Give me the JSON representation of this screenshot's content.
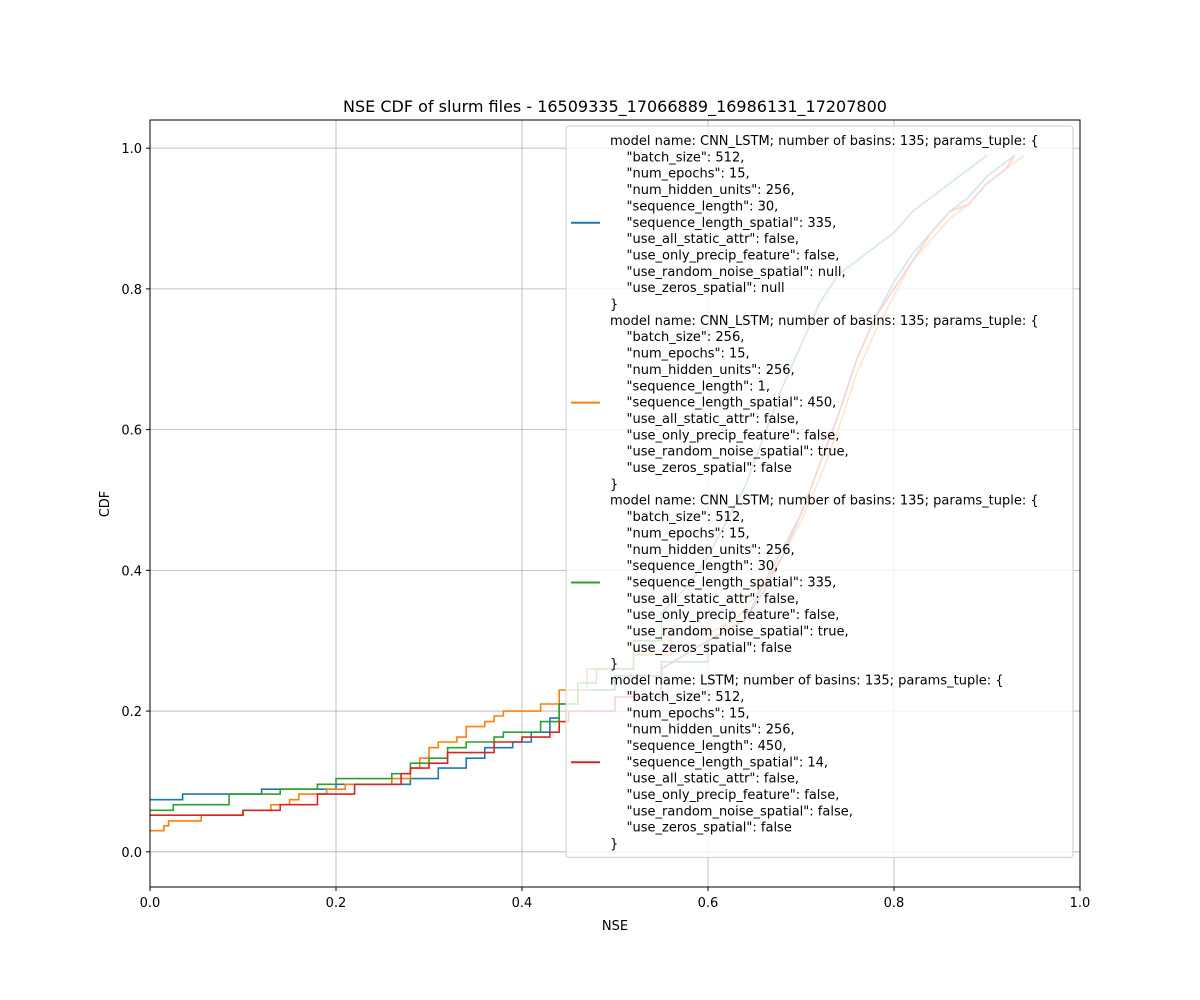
{
  "chart_data": {
    "type": "line",
    "title": "NSE CDF of slurm files - 16509335_17066889_16986131_17207800",
    "xlabel": "NSE",
    "ylabel": "CDF",
    "xlim": [
      0.0,
      1.0
    ],
    "ylim": [
      -0.05,
      1.04
    ],
    "xticks": [
      "0.0",
      "0.2",
      "0.4",
      "0.6",
      "0.8",
      "1.0"
    ],
    "yticks": [
      "0.0",
      "0.2",
      "0.4",
      "0.6",
      "0.8",
      "1.0"
    ],
    "grid": true,
    "legend_position": "top-right",
    "series": [
      {
        "color": "#1f77b4",
        "legend_lines": [
          "model name: CNN_LSTM; number of basins: 135; params_tuple: {",
          "    \"batch_size\": 512,",
          "    \"num_epochs\": 15,",
          "    \"num_hidden_units\": 256,",
          "    \"sequence_length\": 30,",
          "    \"sequence_length_spatial\": 335,",
          "    \"use_all_static_attr\": false,",
          "    \"use_only_precip_feature\": false,",
          "    \"use_random_noise_spatial\": null,",
          "    \"use_zeros_spatial\": null",
          "}"
        ],
        "points": [
          [
            0.0,
            0.074
          ],
          [
            0.035,
            0.074
          ],
          [
            0.035,
            0.082
          ],
          [
            0.12,
            0.082
          ],
          [
            0.12,
            0.089
          ],
          [
            0.2,
            0.089
          ],
          [
            0.2,
            0.096
          ],
          [
            0.28,
            0.096
          ],
          [
            0.28,
            0.104
          ],
          [
            0.31,
            0.104
          ],
          [
            0.31,
            0.119
          ],
          [
            0.34,
            0.119
          ],
          [
            0.34,
            0.133
          ],
          [
            0.36,
            0.133
          ],
          [
            0.36,
            0.148
          ],
          [
            0.39,
            0.148
          ],
          [
            0.39,
            0.156
          ],
          [
            0.41,
            0.156
          ],
          [
            0.41,
            0.17
          ],
          [
            0.43,
            0.17
          ],
          [
            0.43,
            0.19
          ],
          [
            0.44,
            0.19
          ],
          [
            0.44,
            0.21
          ],
          [
            0.46,
            0.21
          ],
          [
            0.46,
            0.23
          ],
          [
            0.5,
            0.23
          ],
          [
            0.5,
            0.25
          ],
          [
            0.55,
            0.25
          ],
          [
            0.55,
            0.27
          ],
          [
            0.6,
            0.27
          ],
          [
            0.6,
            0.3
          ],
          [
            0.64,
            0.33
          ],
          [
            0.66,
            0.38
          ],
          [
            0.68,
            0.43
          ],
          [
            0.7,
            0.48
          ],
          [
            0.72,
            0.55
          ],
          [
            0.74,
            0.62
          ],
          [
            0.76,
            0.7
          ],
          [
            0.78,
            0.76
          ],
          [
            0.8,
            0.81
          ],
          [
            0.82,
            0.85
          ],
          [
            0.84,
            0.88
          ],
          [
            0.86,
            0.91
          ],
          [
            0.88,
            0.93
          ],
          [
            0.9,
            0.96
          ],
          [
            0.92,
            0.98
          ],
          [
            0.93,
            0.99
          ]
        ]
      },
      {
        "color": "#ff7f0e",
        "legend_lines": [
          "model name: CNN_LSTM; number of basins: 135; params_tuple: {",
          "    \"batch_size\": 256,",
          "    \"num_epochs\": 15,",
          "    \"num_hidden_units\": 256,",
          "    \"sequence_length\": 1,",
          "    \"sequence_length_spatial\": 450,",
          "    \"use_all_static_attr\": false,",
          "    \"use_only_precip_feature\": false,",
          "    \"use_random_noise_spatial\": true,",
          "    \"use_zeros_spatial\": false",
          "}"
        ],
        "points": [
          [
            0.0,
            0.03
          ],
          [
            0.015,
            0.03
          ],
          [
            0.015,
            0.037
          ],
          [
            0.02,
            0.037
          ],
          [
            0.02,
            0.044
          ],
          [
            0.055,
            0.044
          ],
          [
            0.055,
            0.052
          ],
          [
            0.1,
            0.052
          ],
          [
            0.1,
            0.059
          ],
          [
            0.13,
            0.059
          ],
          [
            0.13,
            0.067
          ],
          [
            0.15,
            0.067
          ],
          [
            0.15,
            0.074
          ],
          [
            0.16,
            0.074
          ],
          [
            0.16,
            0.082
          ],
          [
            0.19,
            0.082
          ],
          [
            0.19,
            0.089
          ],
          [
            0.21,
            0.089
          ],
          [
            0.21,
            0.096
          ],
          [
            0.26,
            0.096
          ],
          [
            0.26,
            0.104
          ],
          [
            0.28,
            0.104
          ],
          [
            0.28,
            0.119
          ],
          [
            0.29,
            0.119
          ],
          [
            0.29,
            0.133
          ],
          [
            0.3,
            0.133
          ],
          [
            0.3,
            0.148
          ],
          [
            0.31,
            0.148
          ],
          [
            0.31,
            0.156
          ],
          [
            0.33,
            0.156
          ],
          [
            0.33,
            0.163
          ],
          [
            0.34,
            0.163
          ],
          [
            0.34,
            0.178
          ],
          [
            0.36,
            0.178
          ],
          [
            0.36,
            0.185
          ],
          [
            0.37,
            0.185
          ],
          [
            0.37,
            0.193
          ],
          [
            0.38,
            0.193
          ],
          [
            0.38,
            0.2
          ],
          [
            0.42,
            0.2
          ],
          [
            0.42,
            0.21
          ],
          [
            0.44,
            0.21
          ],
          [
            0.44,
            0.23
          ],
          [
            0.47,
            0.23
          ],
          [
            0.47,
            0.26
          ],
          [
            0.52,
            0.26
          ],
          [
            0.52,
            0.28
          ],
          [
            0.56,
            0.28
          ],
          [
            0.56,
            0.31
          ],
          [
            0.6,
            0.31
          ],
          [
            0.63,
            0.33
          ],
          [
            0.66,
            0.38
          ],
          [
            0.68,
            0.42
          ],
          [
            0.7,
            0.47
          ],
          [
            0.72,
            0.53
          ],
          [
            0.74,
            0.6
          ],
          [
            0.76,
            0.68
          ],
          [
            0.78,
            0.74
          ],
          [
            0.8,
            0.79
          ],
          [
            0.82,
            0.84
          ],
          [
            0.84,
            0.87
          ],
          [
            0.86,
            0.9
          ],
          [
            0.88,
            0.92
          ],
          [
            0.9,
            0.95
          ],
          [
            0.92,
            0.97
          ],
          [
            0.94,
            0.99
          ]
        ]
      },
      {
        "color": "#2ca02c",
        "legend_lines": [
          "model name: CNN_LSTM; number of basins: 135; params_tuple: {",
          "    \"batch_size\": 512,",
          "    \"num_epochs\": 15,",
          "    \"num_hidden_units\": 256,",
          "    \"sequence_length\": 30,",
          "    \"sequence_length_spatial\": 335,",
          "    \"use_all_static_attr\": false,",
          "    \"use_only_precip_feature\": false,",
          "    \"use_random_noise_spatial\": true,",
          "    \"use_zeros_spatial\": false",
          "}"
        ],
        "points": [
          [
            0.0,
            0.059
          ],
          [
            0.025,
            0.059
          ],
          [
            0.025,
            0.067
          ],
          [
            0.085,
            0.067
          ],
          [
            0.085,
            0.082
          ],
          [
            0.14,
            0.082
          ],
          [
            0.14,
            0.089
          ],
          [
            0.18,
            0.089
          ],
          [
            0.18,
            0.096
          ],
          [
            0.2,
            0.096
          ],
          [
            0.2,
            0.104
          ],
          [
            0.26,
            0.104
          ],
          [
            0.26,
            0.111
          ],
          [
            0.28,
            0.111
          ],
          [
            0.28,
            0.126
          ],
          [
            0.3,
            0.126
          ],
          [
            0.3,
            0.133
          ],
          [
            0.32,
            0.133
          ],
          [
            0.32,
            0.148
          ],
          [
            0.34,
            0.148
          ],
          [
            0.34,
            0.156
          ],
          [
            0.37,
            0.156
          ],
          [
            0.37,
            0.163
          ],
          [
            0.38,
            0.163
          ],
          [
            0.38,
            0.17
          ],
          [
            0.42,
            0.17
          ],
          [
            0.42,
            0.185
          ],
          [
            0.44,
            0.185
          ],
          [
            0.44,
            0.21
          ],
          [
            0.46,
            0.21
          ],
          [
            0.46,
            0.24
          ],
          [
            0.48,
            0.24
          ],
          [
            0.48,
            0.26
          ],
          [
            0.52,
            0.26
          ],
          [
            0.52,
            0.3
          ],
          [
            0.55,
            0.3
          ],
          [
            0.55,
            0.34
          ],
          [
            0.58,
            0.38
          ],
          [
            0.6,
            0.42
          ],
          [
            0.62,
            0.47
          ],
          [
            0.64,
            0.52
          ],
          [
            0.66,
            0.59
          ],
          [
            0.68,
            0.66
          ],
          [
            0.7,
            0.72
          ],
          [
            0.72,
            0.78
          ],
          [
            0.74,
            0.82
          ],
          [
            0.76,
            0.84
          ],
          [
            0.78,
            0.86
          ],
          [
            0.8,
            0.88
          ],
          [
            0.82,
            0.91
          ],
          [
            0.84,
            0.93
          ],
          [
            0.86,
            0.95
          ],
          [
            0.88,
            0.97
          ],
          [
            0.9,
            0.99
          ]
        ]
      },
      {
        "color": "#d62728",
        "legend_lines": [
          "model name: LSTM; number of basins: 135; params_tuple: {",
          "    \"batch_size\": 512,",
          "    \"num_epochs\": 15,",
          "    \"num_hidden_units\": 256,",
          "    \"sequence_length\": 450,",
          "    \"sequence_length_spatial\": 14,",
          "    \"use_all_static_attr\": false,",
          "    \"use_only_precip_feature\": false,",
          "    \"use_random_noise_spatial\": false,",
          "    \"use_zeros_spatial\": false",
          "}"
        ],
        "points": [
          [
            0.0,
            0.052
          ],
          [
            0.1,
            0.052
          ],
          [
            0.1,
            0.059
          ],
          [
            0.14,
            0.059
          ],
          [
            0.14,
            0.067
          ],
          [
            0.18,
            0.067
          ],
          [
            0.18,
            0.082
          ],
          [
            0.22,
            0.082
          ],
          [
            0.22,
            0.096
          ],
          [
            0.27,
            0.096
          ],
          [
            0.27,
            0.111
          ],
          [
            0.28,
            0.111
          ],
          [
            0.28,
            0.119
          ],
          [
            0.3,
            0.119
          ],
          [
            0.3,
            0.126
          ],
          [
            0.32,
            0.126
          ],
          [
            0.32,
            0.141
          ],
          [
            0.37,
            0.141
          ],
          [
            0.37,
            0.156
          ],
          [
            0.4,
            0.156
          ],
          [
            0.4,
            0.163
          ],
          [
            0.43,
            0.163
          ],
          [
            0.43,
            0.17
          ],
          [
            0.44,
            0.17
          ],
          [
            0.44,
            0.185
          ],
          [
            0.45,
            0.185
          ],
          [
            0.45,
            0.2
          ],
          [
            0.5,
            0.2
          ],
          [
            0.5,
            0.22
          ],
          [
            0.55,
            0.22
          ],
          [
            0.55,
            0.26
          ],
          [
            0.6,
            0.3
          ],
          [
            0.64,
            0.33
          ],
          [
            0.66,
            0.37
          ],
          [
            0.68,
            0.42
          ],
          [
            0.7,
            0.48
          ],
          [
            0.72,
            0.55
          ],
          [
            0.74,
            0.62
          ],
          [
            0.76,
            0.7
          ],
          [
            0.78,
            0.76
          ],
          [
            0.8,
            0.8
          ],
          [
            0.82,
            0.84
          ],
          [
            0.84,
            0.88
          ],
          [
            0.86,
            0.91
          ],
          [
            0.88,
            0.92
          ],
          [
            0.9,
            0.95
          ],
          [
            0.92,
            0.97
          ],
          [
            0.93,
            0.99
          ]
        ]
      }
    ]
  }
}
